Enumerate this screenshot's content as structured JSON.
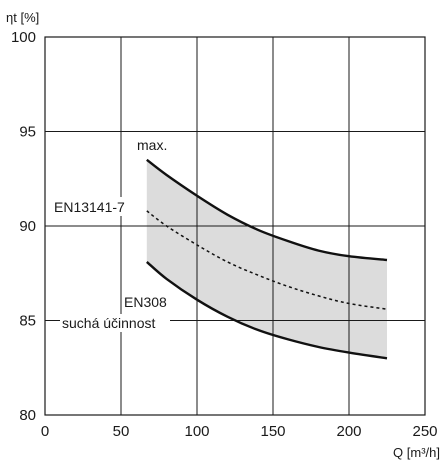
{
  "chart_data": {
    "type": "area",
    "xlabel": "Q [m³/h]",
    "ylabel": "ηt [%]",
    "xlim": [
      0,
      250
    ],
    "ylim": [
      80,
      100
    ],
    "x_ticks": [
      "0",
      "50",
      "100",
      "150",
      "200",
      "250"
    ],
    "y_ticks": [
      "80",
      "85",
      "90",
      "95",
      "100"
    ],
    "grid": true,
    "series": [
      {
        "name": "max.",
        "style": "solid",
        "x": [
          67,
          80,
          100,
          120,
          140,
          160,
          180,
          200,
          225
        ],
        "y": [
          93.5,
          92.7,
          91.6,
          90.6,
          89.8,
          89.2,
          88.7,
          88.4,
          88.2
        ]
      },
      {
        "name": "EN13141-7",
        "style": "dashed",
        "x": [
          67,
          80,
          100,
          120,
          140,
          160,
          180,
          200,
          225
        ],
        "y": [
          90.8,
          90.0,
          89.0,
          88.1,
          87.4,
          86.8,
          86.3,
          85.9,
          85.6
        ]
      },
      {
        "name": "EN308 suchá účinnost",
        "style": "solid",
        "x": [
          67,
          80,
          100,
          120,
          140,
          160,
          180,
          200,
          225
        ],
        "y": [
          88.1,
          87.2,
          86.1,
          85.2,
          84.5,
          84.0,
          83.6,
          83.3,
          83.0
        ]
      }
    ],
    "band": {
      "between": [
        "max.",
        "EN308 suchá účinnost"
      ],
      "color": "#dcdcdc"
    },
    "annotations": {
      "max": "max.",
      "en13141": "EN13141-7",
      "en308_line1": "EN308",
      "en308_line2": "suchá účinnost"
    },
    "colors": {
      "lines": "#111111",
      "band": "#dcdcdc",
      "grid": "#1a1a1a"
    }
  }
}
